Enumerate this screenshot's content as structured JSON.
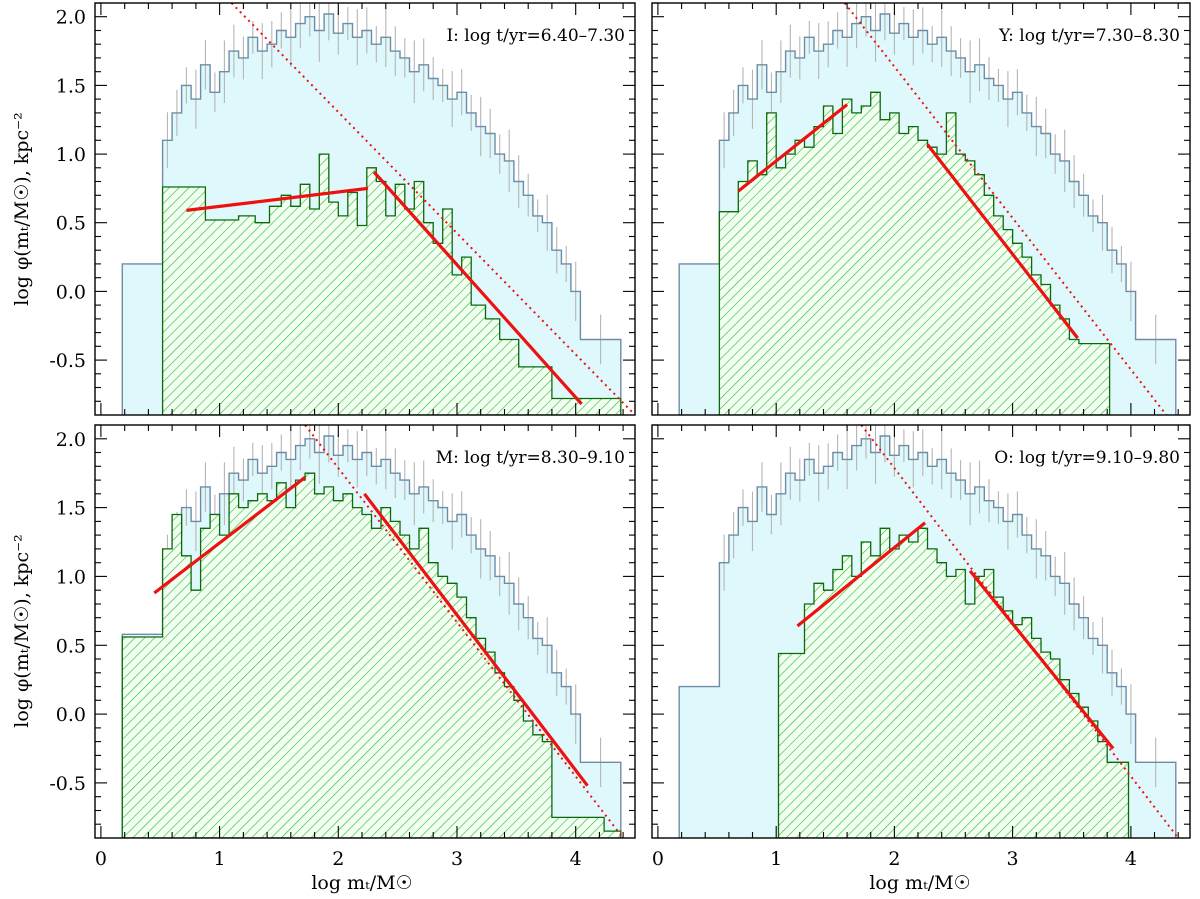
{
  "figure": {
    "xlabel": "log mₜ/M☉",
    "ylabel": "log φ(mₜ/M☉), kpc⁻²",
    "colors": {
      "all_fill": "#dff8fb",
      "all_edge": "#6f8ca6",
      "sub_hatch": "#2fbf2f",
      "sub_edge": "#0a6a0a",
      "sub_fill": "#f4fff4",
      "fit": "#ee1111",
      "errbar": "#b5b5b5"
    }
  },
  "chart_data": [
    {
      "type": "histogram",
      "panel": "I",
      "title": "I: log t/yr=6.40–7.30",
      "xlim": [
        -0.05,
        4.5
      ],
      "ylim": [
        -0.9,
        2.1
      ],
      "xticks": [
        "0",
        "1",
        "2",
        "3",
        "4"
      ],
      "yticks": [
        "-0.5",
        "0.0",
        "0.5",
        "1.0",
        "1.5",
        "2.0"
      ],
      "all_edges": [
        0.18,
        0.52,
        0.6,
        0.68,
        0.76,
        0.84,
        0.92,
        1.0,
        1.08,
        1.16,
        1.24,
        1.32,
        1.4,
        1.48,
        1.56,
        1.64,
        1.72,
        1.8,
        1.88,
        1.96,
        2.04,
        2.12,
        2.2,
        2.28,
        2.36,
        2.44,
        2.52,
        2.6,
        2.68,
        2.76,
        2.84,
        2.92,
        3.0,
        3.08,
        3.16,
        3.24,
        3.32,
        3.4,
        3.48,
        3.56,
        3.64,
        3.72,
        3.8,
        3.88,
        3.96,
        4.04,
        4.38
      ],
      "all_values": [
        0.2,
        1.1,
        1.3,
        1.5,
        1.4,
        1.65,
        1.45,
        1.6,
        1.75,
        1.7,
        1.85,
        1.75,
        1.8,
        1.9,
        1.85,
        1.95,
        2.0,
        1.9,
        2.02,
        1.88,
        1.95,
        1.85,
        1.9,
        1.8,
        1.85,
        1.75,
        1.7,
        1.6,
        1.65,
        1.55,
        1.5,
        1.4,
        1.45,
        1.3,
        1.2,
        1.15,
        1.0,
        0.95,
        0.8,
        0.7,
        0.55,
        0.5,
        0.3,
        0.2,
        0.0,
        -0.35
      ],
      "sub_edges": [
        0.52,
        0.88,
        1.16,
        1.3,
        1.42,
        1.52,
        1.6,
        1.68,
        1.76,
        1.84,
        1.92,
        2.0,
        2.08,
        2.16,
        2.24,
        2.32,
        2.4,
        2.48,
        2.56,
        2.64,
        2.72,
        2.8,
        2.88,
        2.96,
        3.04,
        3.12,
        3.24,
        3.36,
        3.52,
        3.8,
        4.38
      ],
      "sub_values": [
        0.76,
        0.52,
        0.55,
        0.5,
        0.62,
        0.7,
        0.62,
        0.78,
        0.6,
        1.0,
        0.65,
        0.55,
        0.72,
        0.48,
        0.9,
        0.8,
        0.55,
        0.78,
        0.6,
        0.8,
        0.5,
        0.35,
        0.6,
        0.12,
        0.25,
        -0.1,
        -0.2,
        -0.35,
        -0.55,
        -0.78
      ],
      "fits": [
        [
          [
            0.72,
            0.59
          ],
          [
            2.25,
            0.75
          ]
        ],
        [
          [
            2.3,
            0.87
          ],
          [
            4.05,
            -0.82
          ]
        ]
      ],
      "dotted": [
        [
          1.1,
          2.1
        ],
        [
          4.5,
          -0.9
        ]
      ]
    },
    {
      "type": "histogram",
      "panel": "Y",
      "title": "Y: log t/yr=7.30–8.30",
      "xlim": [
        -0.05,
        4.5
      ],
      "ylim": [
        -0.9,
        2.1
      ],
      "xticks": [
        "0",
        "1",
        "2",
        "3",
        "4"
      ],
      "yticks": [
        "-0.5",
        "0.0",
        "0.5",
        "1.0",
        "1.5",
        "2.0"
      ],
      "all_edges": [
        0.18,
        0.52,
        0.6,
        0.68,
        0.76,
        0.84,
        0.92,
        1.0,
        1.08,
        1.16,
        1.24,
        1.32,
        1.4,
        1.48,
        1.56,
        1.64,
        1.72,
        1.8,
        1.88,
        1.96,
        2.04,
        2.12,
        2.2,
        2.28,
        2.36,
        2.44,
        2.52,
        2.6,
        2.68,
        2.76,
        2.84,
        2.92,
        3.0,
        3.08,
        3.16,
        3.24,
        3.32,
        3.4,
        3.48,
        3.56,
        3.64,
        3.72,
        3.8,
        3.88,
        3.96,
        4.04,
        4.38
      ],
      "all_values": [
        0.2,
        1.1,
        1.3,
        1.5,
        1.4,
        1.65,
        1.45,
        1.6,
        1.75,
        1.7,
        1.85,
        1.75,
        1.8,
        1.9,
        1.85,
        1.95,
        2.0,
        1.9,
        2.02,
        1.88,
        1.95,
        1.85,
        1.9,
        1.8,
        1.85,
        1.75,
        1.7,
        1.6,
        1.65,
        1.55,
        1.5,
        1.4,
        1.45,
        1.3,
        1.2,
        1.15,
        1.0,
        0.95,
        0.8,
        0.7,
        0.55,
        0.5,
        0.3,
        0.2,
        0.0,
        -0.35
      ],
      "sub_edges": [
        0.52,
        0.68,
        0.76,
        0.84,
        0.92,
        1.0,
        1.08,
        1.16,
        1.24,
        1.32,
        1.4,
        1.48,
        1.56,
        1.64,
        1.72,
        1.8,
        1.88,
        1.96,
        2.04,
        2.12,
        2.2,
        2.28,
        2.36,
        2.44,
        2.52,
        2.6,
        2.68,
        2.76,
        2.84,
        2.92,
        3.0,
        3.08,
        3.16,
        3.24,
        3.32,
        3.4,
        3.48,
        3.56,
        3.82
      ],
      "sub_values": [
        0.58,
        0.8,
        0.95,
        0.85,
        1.3,
        0.9,
        1.0,
        1.1,
        1.05,
        1.2,
        1.35,
        1.15,
        1.4,
        1.3,
        1.35,
        1.45,
        1.25,
        1.3,
        1.15,
        1.2,
        1.1,
        1.05,
        1.0,
        1.3,
        1.0,
        0.95,
        0.85,
        0.7,
        0.55,
        0.45,
        0.35,
        0.25,
        0.12,
        0.05,
        -0.1,
        -0.2,
        -0.35,
        -0.38
      ],
      "fits": [
        [
          [
            0.68,
            0.73
          ],
          [
            1.6,
            1.36
          ]
        ],
        [
          [
            2.28,
            1.07
          ],
          [
            3.55,
            -0.34
          ]
        ]
      ],
      "dotted": [
        [
          1.58,
          2.1
        ],
        [
          4.3,
          -0.9
        ]
      ]
    },
    {
      "type": "histogram",
      "panel": "M",
      "title": "M: log t/yr=8.30–9.10",
      "xlim": [
        -0.05,
        4.5
      ],
      "ylim": [
        -0.9,
        2.1
      ],
      "xticks": [
        "0",
        "1",
        "2",
        "3",
        "4"
      ],
      "yticks": [
        "-0.5",
        "0.0",
        "0.5",
        "1.0",
        "1.5",
        "2.0"
      ],
      "all_edges": [
        0.18,
        0.52,
        0.6,
        0.68,
        0.76,
        0.84,
        0.92,
        1.0,
        1.08,
        1.16,
        1.24,
        1.32,
        1.4,
        1.48,
        1.56,
        1.64,
        1.72,
        1.8,
        1.88,
        1.96,
        2.04,
        2.12,
        2.2,
        2.28,
        2.36,
        2.44,
        2.52,
        2.6,
        2.68,
        2.76,
        2.84,
        2.92,
        3.0,
        3.08,
        3.16,
        3.24,
        3.32,
        3.4,
        3.48,
        3.56,
        3.64,
        3.72,
        3.8,
        3.88,
        3.96,
        4.04,
        4.38
      ],
      "all_values": [
        0.58,
        1.1,
        1.3,
        1.5,
        1.4,
        1.65,
        1.45,
        1.6,
        1.75,
        1.7,
        1.85,
        1.75,
        1.8,
        1.9,
        1.85,
        1.95,
        2.0,
        1.9,
        2.02,
        1.88,
        1.95,
        1.85,
        1.9,
        1.8,
        1.85,
        1.75,
        1.7,
        1.6,
        1.65,
        1.55,
        1.5,
        1.4,
        1.45,
        1.3,
        1.2,
        1.15,
        1.0,
        0.95,
        0.8,
        0.7,
        0.55,
        0.5,
        0.3,
        0.2,
        0.0,
        -0.35
      ],
      "sub_edges": [
        0.18,
        0.52,
        0.6,
        0.68,
        0.76,
        0.84,
        0.92,
        1.0,
        1.08,
        1.16,
        1.24,
        1.32,
        1.4,
        1.48,
        1.56,
        1.64,
        1.72,
        1.8,
        1.88,
        1.96,
        2.04,
        2.12,
        2.2,
        2.28,
        2.36,
        2.44,
        2.52,
        2.6,
        2.68,
        2.76,
        2.84,
        2.92,
        3.0,
        3.08,
        3.16,
        3.24,
        3.32,
        3.4,
        3.48,
        3.56,
        3.64,
        3.72,
        3.8,
        4.24,
        4.38
      ],
      "sub_values": [
        0.56,
        1.2,
        1.45,
        1.15,
        0.9,
        1.35,
        1.45,
        1.3,
        1.6,
        1.5,
        1.55,
        1.6,
        1.55,
        1.68,
        1.5,
        1.7,
        1.75,
        1.6,
        1.65,
        1.55,
        1.6,
        1.5,
        1.45,
        1.35,
        1.5,
        1.4,
        1.3,
        1.2,
        1.35,
        1.1,
        1.0,
        0.95,
        0.85,
        0.7,
        0.55,
        0.45,
        0.3,
        0.2,
        0.1,
        -0.05,
        -0.15,
        -0.2,
        -0.75,
        -0.85
      ],
      "fits": [
        [
          [
            0.45,
            0.88
          ],
          [
            1.72,
            1.72
          ]
        ],
        [
          [
            2.22,
            1.6
          ],
          [
            4.1,
            -0.52
          ]
        ]
      ],
      "dotted": [
        [
          1.72,
          2.1
        ],
        [
          4.4,
          -0.9
        ]
      ]
    },
    {
      "type": "histogram",
      "panel": "O",
      "title": "O: log t/yr=9.10–9.80",
      "xlim": [
        -0.05,
        4.5
      ],
      "ylim": [
        -0.9,
        2.1
      ],
      "xticks": [
        "0",
        "1",
        "2",
        "3",
        "4"
      ],
      "yticks": [
        "-0.5",
        "0.0",
        "0.5",
        "1.0",
        "1.5",
        "2.0"
      ],
      "all_edges": [
        0.18,
        0.52,
        0.6,
        0.68,
        0.76,
        0.84,
        0.92,
        1.0,
        1.08,
        1.16,
        1.24,
        1.32,
        1.4,
        1.48,
        1.56,
        1.64,
        1.72,
        1.8,
        1.88,
        1.96,
        2.04,
        2.12,
        2.2,
        2.28,
        2.36,
        2.44,
        2.52,
        2.6,
        2.68,
        2.76,
        2.84,
        2.92,
        3.0,
        3.08,
        3.16,
        3.24,
        3.32,
        3.4,
        3.48,
        3.56,
        3.64,
        3.72,
        3.8,
        3.88,
        3.96,
        4.04,
        4.38
      ],
      "all_values": [
        0.2,
        1.1,
        1.3,
        1.5,
        1.4,
        1.65,
        1.45,
        1.6,
        1.75,
        1.7,
        1.85,
        1.75,
        1.8,
        1.9,
        1.85,
        1.95,
        2.0,
        1.9,
        2.02,
        1.88,
        1.95,
        1.85,
        1.9,
        1.8,
        1.85,
        1.75,
        1.7,
        1.6,
        1.65,
        1.55,
        1.5,
        1.4,
        1.45,
        1.3,
        1.2,
        1.15,
        1.0,
        0.95,
        0.8,
        0.7,
        0.55,
        0.5,
        0.3,
        0.2,
        0.0,
        -0.35
      ],
      "sub_edges": [
        1.02,
        1.24,
        1.32,
        1.4,
        1.48,
        1.56,
        1.64,
        1.72,
        1.8,
        1.88,
        1.96,
        2.04,
        2.12,
        2.2,
        2.28,
        2.36,
        2.44,
        2.52,
        2.6,
        2.68,
        2.76,
        2.84,
        2.92,
        3.0,
        3.08,
        3.16,
        3.24,
        3.32,
        3.4,
        3.48,
        3.56,
        3.64,
        3.72,
        3.8,
        3.98
      ],
      "sub_values": [
        0.44,
        0.8,
        0.95,
        0.9,
        1.05,
        1.15,
        1.0,
        1.25,
        1.15,
        1.35,
        1.2,
        1.3,
        1.25,
        1.35,
        1.2,
        1.1,
        1.0,
        1.05,
        0.8,
        1.0,
        1.05,
        0.85,
        0.75,
        0.65,
        0.7,
        0.55,
        0.45,
        0.4,
        0.25,
        0.15,
        0.05,
        -0.05,
        -0.2,
        -0.35
      ],
      "fits": [
        [
          [
            1.18,
            0.64
          ],
          [
            2.26,
            1.39
          ]
        ],
        [
          [
            2.64,
            1.04
          ],
          [
            3.85,
            -0.25
          ]
        ]
      ],
      "dotted": [
        [
          1.72,
          2.1
        ],
        [
          4.4,
          -0.9
        ]
      ]
    }
  ]
}
